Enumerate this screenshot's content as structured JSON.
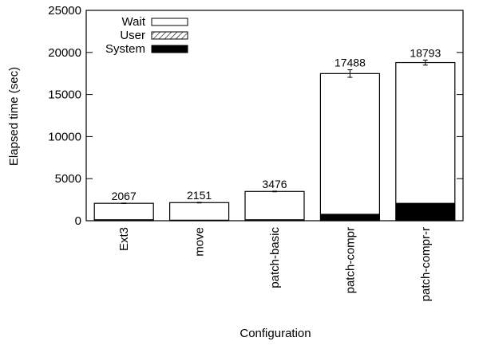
{
  "chart_data": {
    "type": "bar",
    "stacked": true,
    "title": "",
    "xlabel": "Configuration",
    "ylabel": "Elapsed time (sec)",
    "ylim": [
      0,
      25000
    ],
    "yticks": [
      0,
      5000,
      10000,
      15000,
      20000,
      25000
    ],
    "grid": false,
    "legend_position": "top-left",
    "categories": [
      "Ext3",
      "move",
      "patch-basic",
      "patch-compr",
      "patch-compr-r"
    ],
    "series": [
      {
        "name": "System",
        "pattern": "solid-black",
        "values": [
          150,
          100,
          150,
          800,
          2100
        ]
      },
      {
        "name": "User",
        "pattern": "diagonal-hatch",
        "values": [
          20,
          20,
          20,
          20,
          20
        ]
      },
      {
        "name": "Wait",
        "pattern": "white",
        "values": [
          1897,
          2031,
          3306,
          16668,
          16673
        ]
      }
    ],
    "totals": [
      2067,
      2151,
      3476,
      17488,
      18793
    ],
    "total_labels": [
      "2067",
      "2151",
      "3476",
      "17488",
      "18793"
    ],
    "error_bars": [
      30,
      40,
      40,
      450,
      300
    ],
    "legend": [
      "Wait",
      "User",
      "System"
    ]
  }
}
